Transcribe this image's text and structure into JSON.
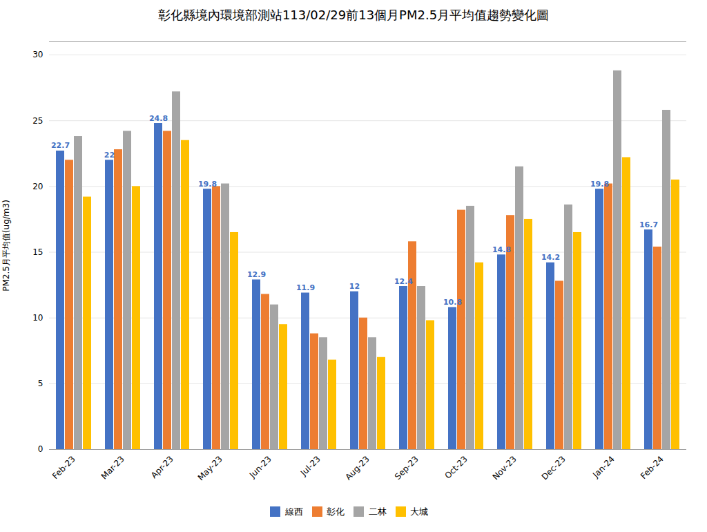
{
  "chart_data": {
    "type": "bar",
    "title": "彰化縣境內環境部測站113/02/29前13個月PM2.5月平均值趨勢變化圖",
    "ylabel": "PM2.5月平均值(ug/m3)",
    "categories": [
      "Feb-23",
      "Mar-23",
      "Apr-23",
      "May-23",
      "Jun-23",
      "Jul-23",
      "Aug-23",
      "Sep-23",
      "Oct-23",
      "Nov-23",
      "Dec-23",
      "Jan-24",
      "Feb-24"
    ],
    "series": [
      {
        "name": "線西",
        "color": "#4472C4",
        "values": [
          22.7,
          22.0,
          24.8,
          19.8,
          12.9,
          11.9,
          12.0,
          12.4,
          10.8,
          14.8,
          14.2,
          19.8,
          16.7
        ],
        "data_labels": true
      },
      {
        "name": "彰化",
        "color": "#ED7D31",
        "values": [
          22.0,
          22.8,
          24.2,
          20.0,
          11.8,
          8.8,
          10.0,
          15.8,
          18.2,
          17.8,
          12.8,
          20.2,
          15.4
        ]
      },
      {
        "name": "二林",
        "color": "#A5A5A5",
        "values": [
          23.8,
          24.2,
          27.2,
          20.2,
          11.0,
          8.5,
          8.5,
          12.4,
          18.5,
          21.5,
          18.6,
          28.8,
          25.8
        ]
      },
      {
        "name": "大城",
        "color": "#FFC000",
        "values": [
          19.2,
          20.0,
          23.5,
          16.5,
          9.5,
          6.8,
          7.0,
          9.8,
          14.2,
          17.5,
          16.5,
          22.2,
          20.5
        ]
      }
    ],
    "ylim": [
      0,
      31
    ],
    "yticks": [
      0,
      5,
      10,
      15,
      20,
      25,
      30
    ],
    "grid": true,
    "legend": "bottom"
  }
}
